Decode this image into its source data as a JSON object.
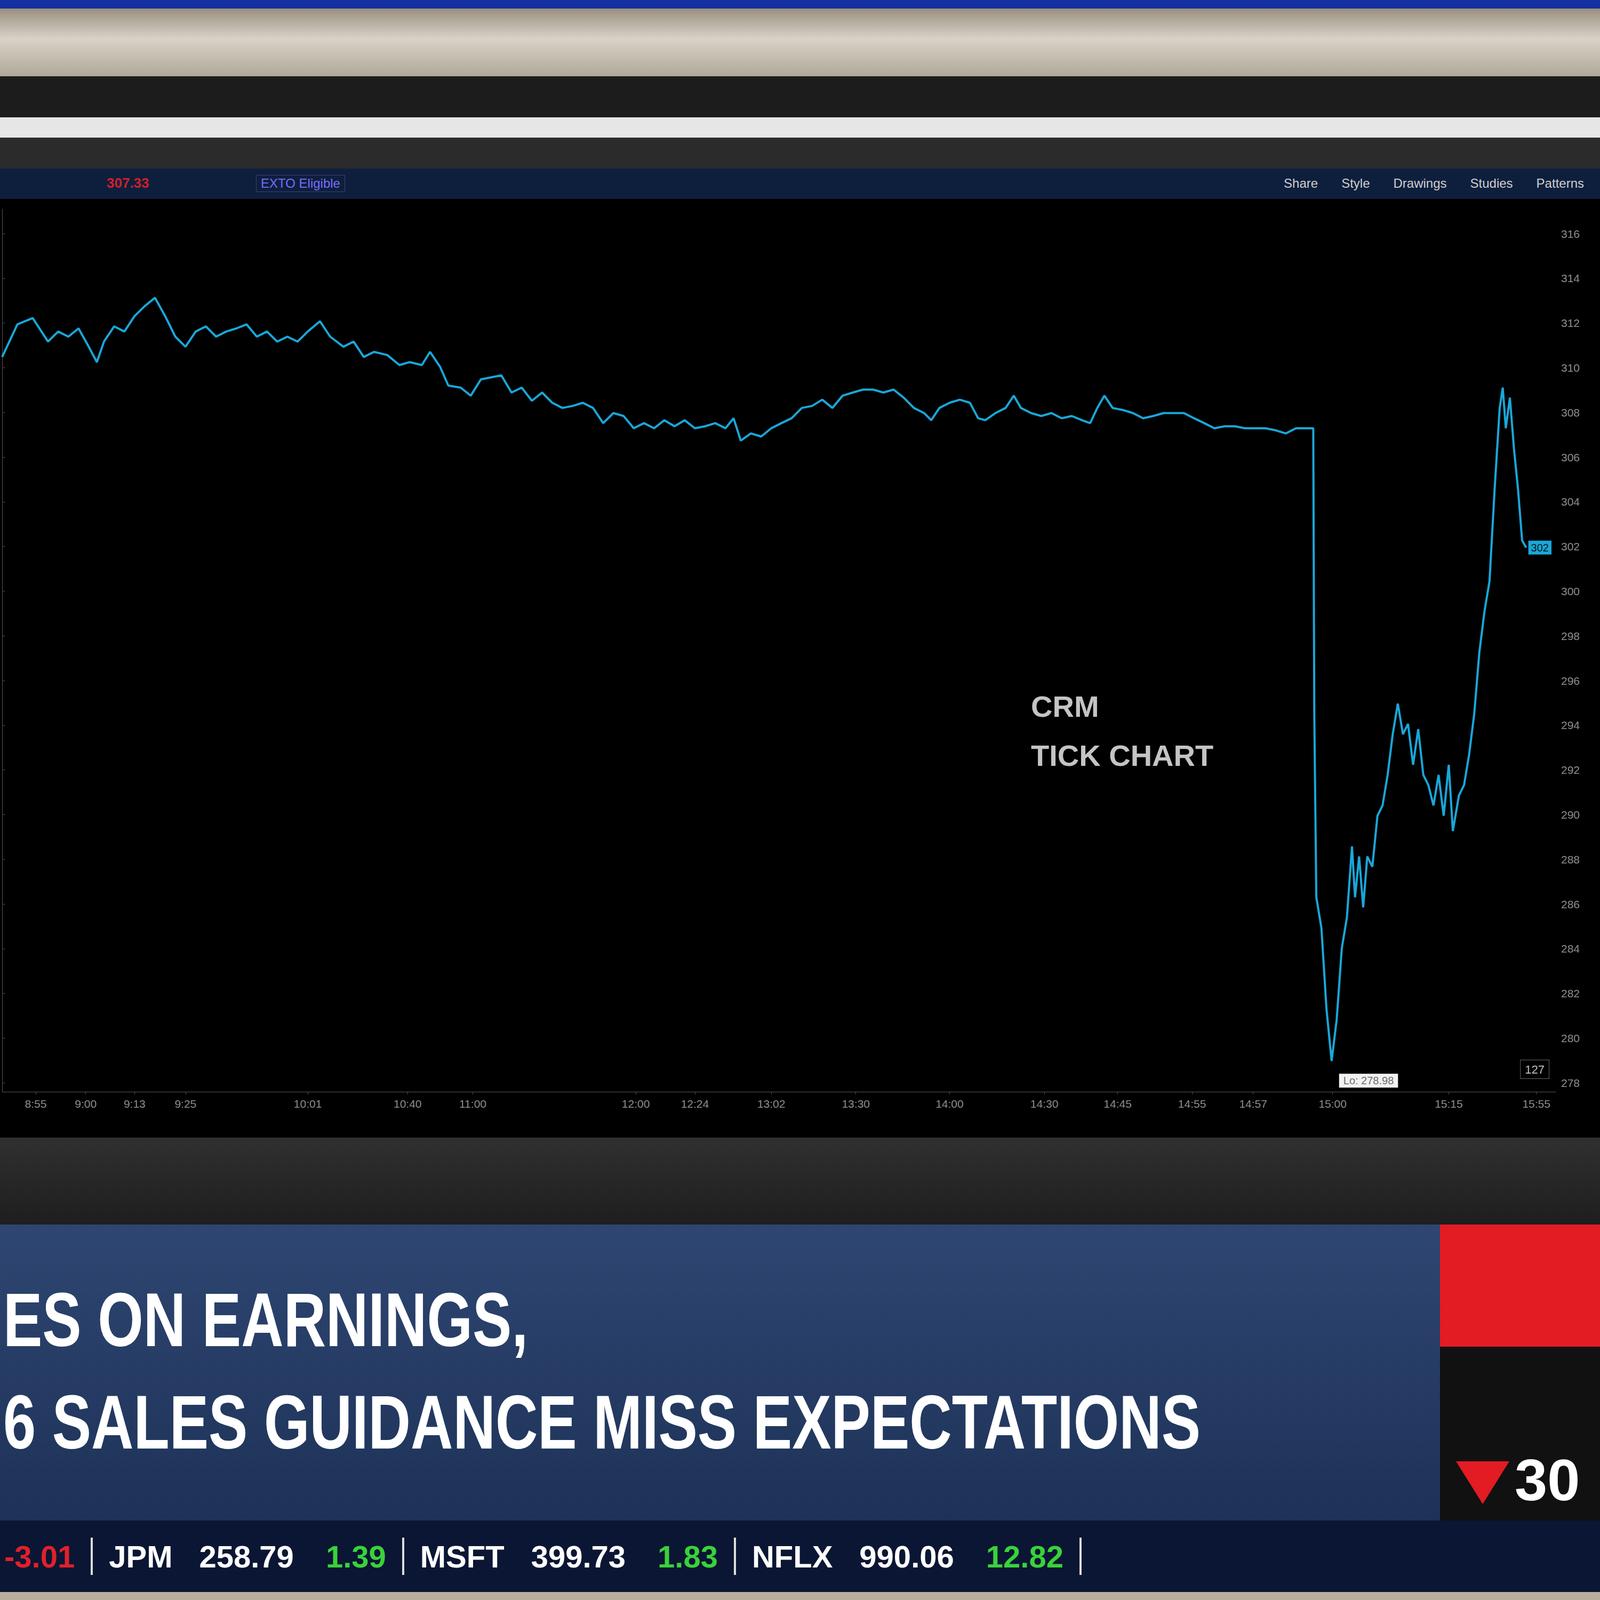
{
  "chart_data": {
    "type": "line",
    "title": "CRM TICK CHART",
    "color": "#19a7d9",
    "grid": false,
    "x": [
      0,
      15,
      30,
      45,
      55,
      65,
      75,
      85,
      93,
      100,
      110,
      120,
      130,
      140,
      150,
      160,
      170,
      180,
      190,
      200,
      210,
      220,
      230,
      240,
      250,
      260,
      270,
      280,
      290,
      300,
      312,
      322,
      335,
      345,
      355,
      365,
      378,
      390,
      400,
      412,
      420,
      430,
      438,
      450,
      460,
      470,
      480,
      490,
      500,
      510,
      520,
      530,
      540,
      550,
      560,
      570,
      580,
      590,
      600,
      610,
      620,
      630,
      640,
      650,
      660,
      670,
      680,
      690,
      700,
      710,
      718,
      725,
      735,
      745,
      755,
      765,
      775,
      785,
      795,
      805,
      815,
      825,
      835,
      845,
      855,
      865,
      875,
      885,
      895,
      905,
      912,
      920,
      930,
      940,
      950,
      958,
      965,
      975,
      985,
      993,
      1000,
      1010,
      1020,
      1030,
      1040,
      1050,
      1060,
      1068,
      1075,
      1082,
      1090,
      1100,
      1110,
      1120,
      1130,
      1140,
      1150,
      1160,
      1170,
      1180,
      1190,
      1200,
      1210,
      1220,
      1230,
      1240,
      1250,
      1260,
      1270,
      1280,
      1287,
      1288,
      1290,
      1295,
      1300,
      1305,
      1310,
      1315,
      1320,
      1325,
      1328,
      1332,
      1336,
      1340,
      1345,
      1350,
      1355,
      1360,
      1365,
      1370,
      1375,
      1380,
      1385,
      1390,
      1395,
      1400,
      1405,
      1410,
      1415,
      1420,
      1424,
      1430,
      1435,
      1440,
      1445,
      1450,
      1455,
      1460,
      1465,
      1470,
      1473,
      1476,
      1480,
      1484,
      1488,
      1492,
      1496
    ],
    "values": [
      310.48,
      311.94,
      312.22,
      311.17,
      311.62,
      311.39,
      311.76,
      310.94,
      310.25,
      311.17,
      311.85,
      311.62,
      312.31,
      312.76,
      313.13,
      312.31,
      311.39,
      310.94,
      311.62,
      311.85,
      311.39,
      311.62,
      311.76,
      311.94,
      311.39,
      311.62,
      311.17,
      311.39,
      311.17,
      311.62,
      312.08,
      311.39,
      310.94,
      311.17,
      310.48,
      310.71,
      310.57,
      310.12,
      310.25,
      310.12,
      310.71,
      310.03,
      309.2,
      309.11,
      308.75,
      309.48,
      309.57,
      309.66,
      308.89,
      309.11,
      308.52,
      308.89,
      308.43,
      308.2,
      308.29,
      308.43,
      308.2,
      307.52,
      307.97,
      307.84,
      307.29,
      307.52,
      307.29,
      307.65,
      307.38,
      307.65,
      307.29,
      307.38,
      307.52,
      307.29,
      307.74,
      306.74,
      307.06,
      306.92,
      307.29,
      307.52,
      307.74,
      308.2,
      308.29,
      308.57,
      308.2,
      308.75,
      308.89,
      309.02,
      309.02,
      308.89,
      309.02,
      308.66,
      308.2,
      307.97,
      307.65,
      308.2,
      308.43,
      308.57,
      308.43,
      307.74,
      307.65,
      307.97,
      308.2,
      308.75,
      308.2,
      307.97,
      307.84,
      307.97,
      307.74,
      307.84,
      307.65,
      307.52,
      308.2,
      308.75,
      308.2,
      308.11,
      307.97,
      307.74,
      307.84,
      307.97,
      307.97,
      307.97,
      307.74,
      307.52,
      307.29,
      307.38,
      307.38,
      307.29,
      307.29,
      307.29,
      307.2,
      307.06,
      307.29,
      307.29,
      307.29,
      294.51,
      286.3,
      284.93,
      281.28,
      278.98,
      280.83,
      284.02,
      285.39,
      288.58,
      286.3,
      288.13,
      285.85,
      288.13,
      287.67,
      289.95,
      290.41,
      291.78,
      293.6,
      294.97,
      293.6,
      294.06,
      292.23,
      293.83,
      291.78,
      291.32,
      290.41,
      291.78,
      289.95,
      292.23,
      289.27,
      290.86,
      291.32,
      292.69,
      294.51,
      297.25,
      299.08,
      300.45,
      304.55,
      308.2,
      309.11,
      307.29,
      308.66,
      306.38,
      304.55,
      302.27,
      301.95
    ],
    "xlim": [
      0,
      1525
    ],
    "xticks": [
      {
        "value": 33,
        "label": "8:55"
      },
      {
        "value": 82,
        "label": "9:00"
      },
      {
        "value": 130,
        "label": "9:13"
      },
      {
        "value": 180,
        "label": "9:25"
      },
      {
        "value": 300,
        "label": "10:01"
      },
      {
        "value": 398,
        "label": "10:40"
      },
      {
        "value": 462,
        "label": "11:00"
      },
      {
        "value": 622,
        "label": "12:00"
      },
      {
        "value": 680,
        "label": "12:24"
      },
      {
        "value": 755,
        "label": "13:02"
      },
      {
        "value": 838,
        "label": "13:30"
      },
      {
        "value": 930,
        "label": "14:00"
      },
      {
        "value": 1023,
        "label": "14:30"
      },
      {
        "value": 1095,
        "label": "14:45"
      },
      {
        "value": 1168,
        "label": "14:55"
      },
      {
        "value": 1228,
        "label": "14:57"
      },
      {
        "value": 1306,
        "label": "15:00"
      },
      {
        "value": 1420,
        "label": "15:15"
      },
      {
        "value": 1506,
        "label": "15:55"
      }
    ],
    "ylim": [
      277.6,
      317.1
    ],
    "yticks": [
      278,
      280,
      282,
      284,
      286,
      288,
      290,
      292,
      294,
      296,
      298,
      300,
      302,
      304,
      306,
      308,
      310,
      312,
      314,
      316
    ],
    "annotations": [
      {
        "text": "Lo: 278.98",
        "x": 1305,
        "y": 278.98
      },
      {
        "text": "302",
        "x": 1496,
        "y": 301.95
      }
    ]
  },
  "chart_panel": {
    "count_badge": "127"
  },
  "toolbar": {
    "price": "307.33",
    "badge": "EXTO Eligible",
    "buttons": [
      "Share",
      "Style",
      "Drawings",
      "Studies",
      "Patterns"
    ]
  },
  "headline": [
    "ES ON EARNINGS,",
    "6 SALES GUIDANCE MISS EXPECTATIONS"
  ],
  "index_box": "30",
  "ticker": [
    {
      "change": "-3.01"
    },
    {
      "symbol": "JPM",
      "price": "258.79",
      "change": "1.39"
    },
    {
      "symbol": "MSFT",
      "price": "399.73",
      "change": "1.83"
    },
    {
      "symbol": "NFLX",
      "price": "990.06",
      "change": "12.82"
    }
  ]
}
